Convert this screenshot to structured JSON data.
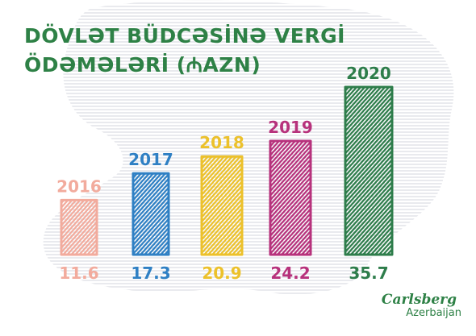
{
  "colors": {
    "title": "#2e8146",
    "stripe": "#dcdde3",
    "logo": "#2e8146"
  },
  "title": {
    "line1": "DÖVLƏT BÜDCƏSİNƏ VERGİ",
    "line2": "ÖDƏMƏLƏRİ (₼AZN)"
  },
  "chart_data": {
    "type": "bar",
    "title": "DÖVLƏT BÜDCƏSİNƏ VERGİ ÖDƏMƏLƏRİ (₼AZN)",
    "categories": [
      "2016",
      "2017",
      "2018",
      "2019",
      "2020"
    ],
    "values": [
      11.6,
      17.3,
      20.9,
      24.2,
      35.7
    ],
    "value_labels": [
      "11.6",
      "17.3",
      "20.9",
      "24.2",
      "35.7"
    ],
    "bar_colors": [
      "#f2ab9d",
      "#2f80c4",
      "#ecc12b",
      "#b7327c",
      "#2e7d4b"
    ],
    "ylim": [
      0,
      35.7
    ],
    "grid": false,
    "legend": "none"
  },
  "logo": {
    "brand": "Carlsberg",
    "sub": "Azerbaijan"
  }
}
